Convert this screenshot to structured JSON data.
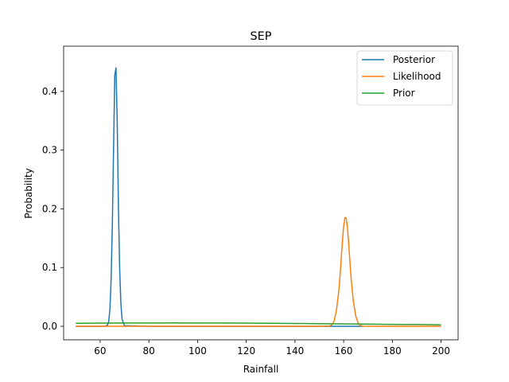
{
  "chart_data": {
    "type": "line",
    "title": "SEP",
    "xlabel": "Rainfall",
    "ylabel": "Probability",
    "xlim": [
      45,
      207
    ],
    "ylim": [
      -0.023,
      0.477
    ],
    "xticks": [
      60,
      80,
      100,
      120,
      140,
      160,
      180,
      200
    ],
    "yticks": [
      0.0,
      0.1,
      0.2,
      0.3,
      0.4
    ],
    "legend_position": "top-right",
    "series": [
      {
        "name": "Posterior",
        "color": "#1f77b4",
        "x": [
          50,
          60,
          62,
          63,
          63.5,
          64,
          64.5,
          65,
          65.5,
          66,
          66.5,
          67,
          67.5,
          68,
          68.5,
          69,
          70,
          80,
          100,
          120,
          140,
          160,
          168
        ],
        "y": [
          0,
          0,
          0.0001,
          0.002,
          0.008,
          0.028,
          0.079,
          0.172,
          0.3,
          0.427,
          0.44,
          0.35,
          0.205,
          0.1,
          0.04,
          0.012,
          0.001,
          0,
          0,
          0,
          0,
          0,
          0
        ]
      },
      {
        "name": "Likelihood",
        "color": "#ff7f0e",
        "x": [
          50,
          100,
          150,
          154,
          155,
          156,
          157,
          158,
          158.5,
          159,
          159.5,
          160,
          160.5,
          161,
          161.5,
          162,
          162.5,
          163,
          164,
          165,
          166,
          167,
          168,
          170,
          180,
          200
        ],
        "y": [
          0,
          0,
          0,
          0.0003,
          0.002,
          0.008,
          0.026,
          0.06,
          0.085,
          0.115,
          0.145,
          0.17,
          0.185,
          0.185,
          0.17,
          0.145,
          0.115,
          0.085,
          0.042,
          0.017,
          0.005,
          0.001,
          0.0002,
          0,
          0,
          0
        ]
      },
      {
        "name": "Prior",
        "color": "#2ca02c",
        "x": [
          50,
          60,
          70,
          80,
          90,
          100,
          110,
          120,
          130,
          140,
          150,
          160,
          170,
          180,
          190,
          200
        ],
        "y": [
          0.0051,
          0.0054,
          0.0056,
          0.0057,
          0.0058,
          0.0057,
          0.0056,
          0.0054,
          0.0051,
          0.0048,
          0.0045,
          0.0041,
          0.0037,
          0.0033,
          0.003,
          0.0026
        ]
      }
    ]
  }
}
